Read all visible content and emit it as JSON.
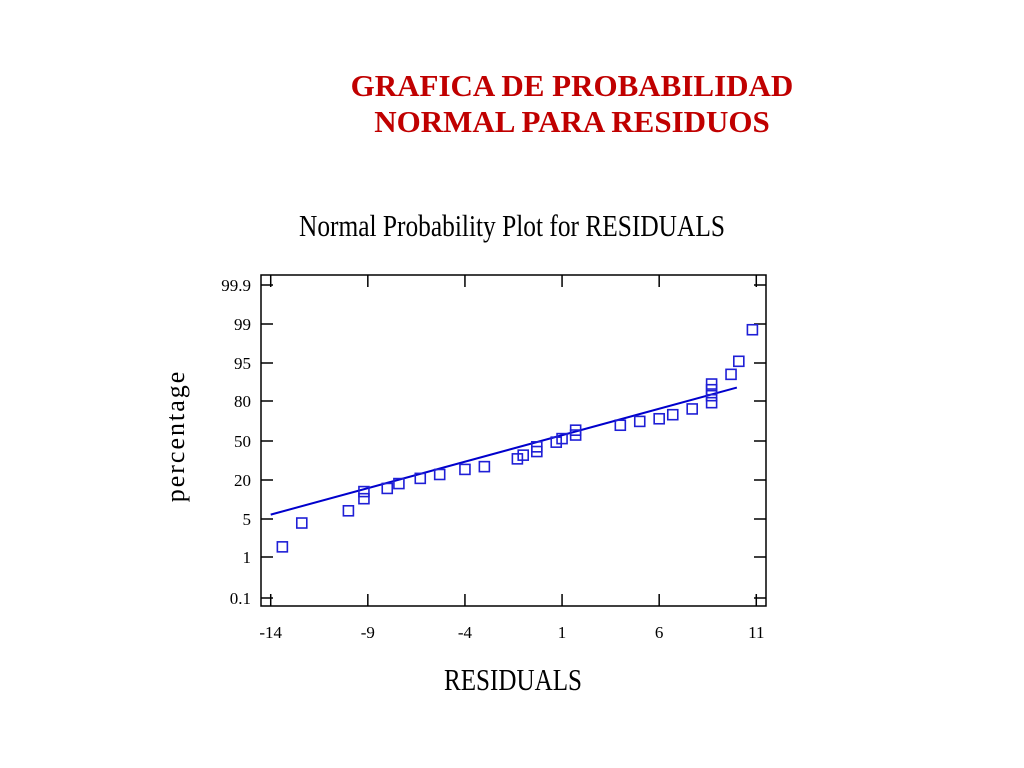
{
  "slide": {
    "title_line1": "GRAFICA DE PROBABILIDAD",
    "title_line2": "NORMAL PARA RESIDUOS"
  },
  "colors": {
    "title": "#c00000",
    "points": "#1f1fd6",
    "fit_line": "#0000cc",
    "axis": "#000000"
  },
  "chart_data": {
    "type": "scatter",
    "title": "Normal Probability Plot for RESIDUALS",
    "xlabel": "RESIDUALS",
    "ylabel": "percentage",
    "xlim": [
      -14.5,
      11.5
    ],
    "x_ticks": [
      -14,
      -9,
      -4,
      1,
      6,
      11
    ],
    "x_tick_labels": [
      "-14",
      "-9",
      "-4",
      "1",
      "6",
      "11"
    ],
    "y_ticks": [
      0.1,
      1,
      5,
      20,
      50,
      80,
      95,
      99,
      99.9
    ],
    "y_tick_labels": [
      "0.1",
      "1",
      "5",
      "20",
      "50",
      "80",
      "95",
      "99",
      "99.9"
    ],
    "y_scale": "normal-probability",
    "grid": false,
    "series": [
      {
        "marker": "open-square",
        "points": [
          {
            "x": -13.4,
            "y": 1.6
          },
          {
            "x": -12.4,
            "y": 4.3
          },
          {
            "x": -10.0,
            "y": 7.0
          },
          {
            "x": -9.2,
            "y": 11.0
          },
          {
            "x": -9.2,
            "y": 14.0
          },
          {
            "x": -8.0,
            "y": 15.5
          },
          {
            "x": -7.4,
            "y": 18.0
          },
          {
            "x": -6.3,
            "y": 21.0
          },
          {
            "x": -5.3,
            "y": 23.5
          },
          {
            "x": -4.0,
            "y": 27.0
          },
          {
            "x": -3.0,
            "y": 29.0
          },
          {
            "x": -1.3,
            "y": 35.0
          },
          {
            "x": -1.0,
            "y": 38.0
          },
          {
            "x": -0.3,
            "y": 41.0
          },
          {
            "x": -0.3,
            "y": 45.0
          },
          {
            "x": 0.7,
            "y": 49.0
          },
          {
            "x": 1.0,
            "y": 52.0
          },
          {
            "x": 1.7,
            "y": 55.0
          },
          {
            "x": 1.7,
            "y": 59.0
          },
          {
            "x": 4.0,
            "y": 63.0
          },
          {
            "x": 5.0,
            "y": 66.0
          },
          {
            "x": 6.0,
            "y": 68.0
          },
          {
            "x": 6.7,
            "y": 71.0
          },
          {
            "x": 7.7,
            "y": 75.0
          },
          {
            "x": 8.7,
            "y": 79.0
          },
          {
            "x": 8.7,
            "y": 83.0
          },
          {
            "x": 8.7,
            "y": 86.0
          },
          {
            "x": 8.7,
            "y": 88.5
          },
          {
            "x": 9.7,
            "y": 92.0
          },
          {
            "x": 10.1,
            "y": 95.3
          },
          {
            "x": 10.8,
            "y": 98.7
          }
        ]
      }
    ],
    "fit_line": {
      "x": [
        -14.0,
        10.0
      ],
      "y": [
        6.0,
        87.0
      ]
    }
  }
}
